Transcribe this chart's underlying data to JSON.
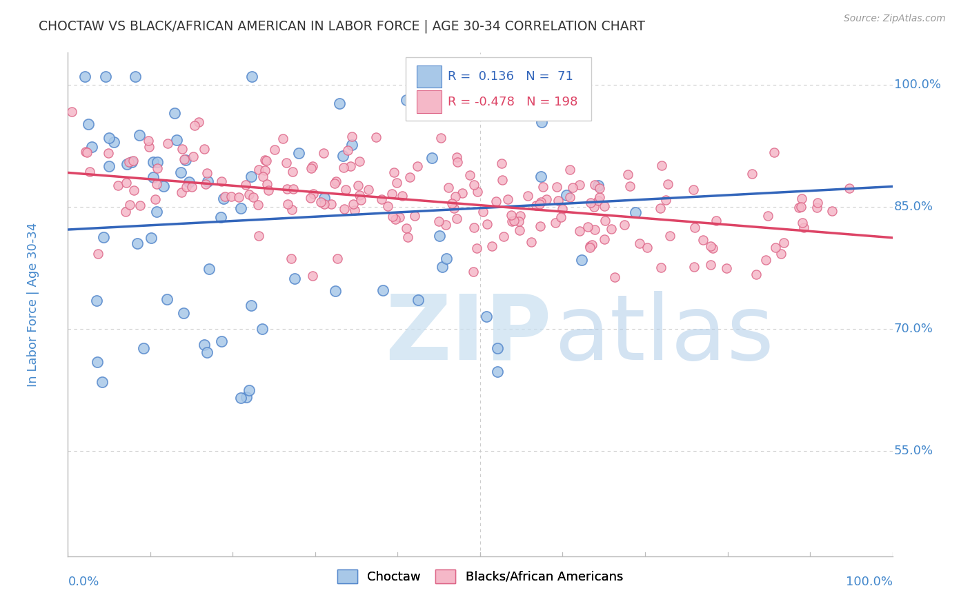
{
  "title": "CHOCTAW VS BLACK/AFRICAN AMERICAN IN LABOR FORCE | AGE 30-34 CORRELATION CHART",
  "source": "Source: ZipAtlas.com",
  "ylabel": "In Labor Force | Age 30-34",
  "xlim": [
    0.0,
    1.0
  ],
  "ylim": [
    0.42,
    1.04
  ],
  "yticks": [
    0.55,
    0.7,
    0.85,
    1.0
  ],
  "ytick_labels": [
    "55.0%",
    "70.0%",
    "85.0%",
    "100.0%"
  ],
  "choctaw_color": "#a8c8e8",
  "choctaw_edge": "#5588cc",
  "black_color": "#f5b8c8",
  "black_edge": "#dd6688",
  "choctaw_R": 0.136,
  "choctaw_N": 71,
  "black_R": -0.478,
  "black_N": 198,
  "trend_choctaw_color": "#3366bb",
  "trend_black_color": "#dd4466",
  "legend_label_choctaw": "Choctaw",
  "legend_label_black": "Blacks/African Americans",
  "watermark_ZIP": "ZIP",
  "watermark_atlas": "atlas",
  "background_color": "#ffffff",
  "grid_color": "#cccccc",
  "title_color": "#333333",
  "axis_label_color": "#4488cc",
  "choctaw_trend_x0": 0.0,
  "choctaw_trend_y0": 0.822,
  "choctaw_trend_x1": 1.0,
  "choctaw_trend_y1": 0.875,
  "black_trend_x0": 0.0,
  "black_trend_y0": 0.892,
  "black_trend_x1": 1.0,
  "black_trend_y1": 0.812
}
